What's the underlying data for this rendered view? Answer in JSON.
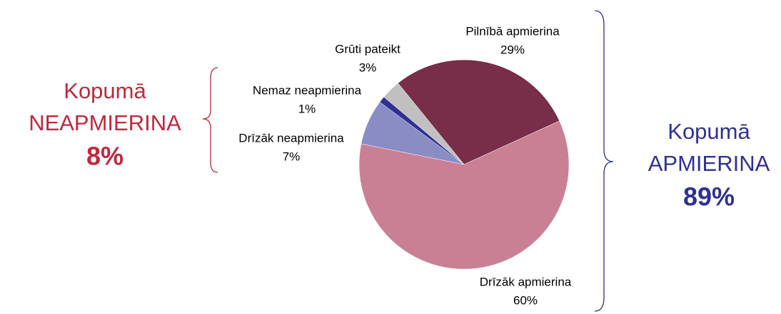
{
  "chart_data": {
    "type": "pie",
    "categories": [
      "Pilnībā apmierina",
      "Drīzāk apmierina",
      "Drīzāk neapmierina",
      "Nemaz neapmierina",
      "Grūti pateikt"
    ],
    "values": [
      29,
      60,
      7,
      1,
      3
    ],
    "value_labels": [
      "29%",
      "60%",
      "7%",
      "1%",
      "3%"
    ],
    "colors": [
      "#782d48",
      "#c98095",
      "#8a8cc4",
      "#2e3192",
      "#c0c0c0"
    ],
    "annotations": {
      "left": {
        "line1": "Kopumā",
        "line2": "NEAPMIERINA",
        "total": "8%",
        "color": "#c0283c"
      },
      "right": {
        "line1": "Kopumā",
        "line2": "APMIERINA",
        "total": "89%",
        "color": "#2e3192"
      }
    }
  }
}
